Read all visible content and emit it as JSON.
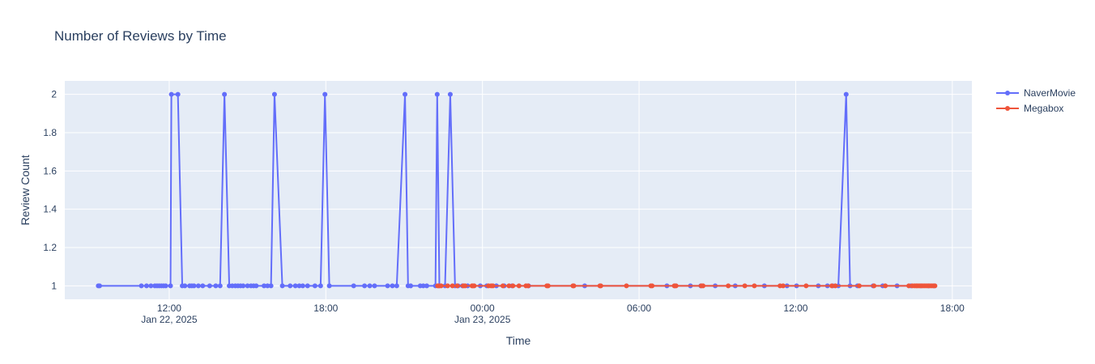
{
  "chart_data": {
    "type": "line",
    "title": "Number of Reviews by Time",
    "xlabel": "Time",
    "ylabel": "Review Count",
    "xlim": [
      "2025-01-22 08:00",
      "2025-01-23 18:45"
    ],
    "ylim": [
      0.93,
      2.07
    ],
    "yticks": [
      1,
      1.2,
      1.4,
      1.6,
      1.8,
      2
    ],
    "ytick_labels": [
      "1",
      "1.2",
      "1.4",
      "1.6",
      "1.8",
      "2"
    ],
    "xticks": [
      {
        "t": "2025-01-22 12:00",
        "label": "12:00",
        "sublabel": "Jan 22, 2025"
      },
      {
        "t": "2025-01-22 18:00",
        "label": "18:00",
        "sublabel": ""
      },
      {
        "t": "2025-01-23 00:00",
        "label": "00:00",
        "sublabel": "Jan 23, 2025"
      },
      {
        "t": "2025-01-23 06:00",
        "label": "06:00",
        "sublabel": ""
      },
      {
        "t": "2025-01-23 12:00",
        "label": "12:00",
        "sublabel": ""
      },
      {
        "t": "2025-01-23 18:00",
        "label": "18:00",
        "sublabel": ""
      }
    ],
    "grid": true,
    "legend_position": "top-right",
    "colors": {
      "plot_bg": "#e5ecf6",
      "grid": "#ffffff",
      "text": "#2a3f5f"
    },
    "series": [
      {
        "name": "NaverMovie",
        "color": "#636efa",
        "points": [
          [
            "2025-01-22 09:17",
            1
          ],
          [
            "2025-01-22 09:20",
            1
          ],
          [
            "2025-01-22 10:56",
            1
          ],
          [
            "2025-01-22 11:08",
            1
          ],
          [
            "2025-01-22 11:18",
            1
          ],
          [
            "2025-01-22 11:27",
            1
          ],
          [
            "2025-01-22 11:32",
            1
          ],
          [
            "2025-01-22 11:37",
            1
          ],
          [
            "2025-01-22 11:42",
            1
          ],
          [
            "2025-01-22 11:47",
            1
          ],
          [
            "2025-01-22 11:52",
            1
          ],
          [
            "2025-01-22 12:03",
            1
          ],
          [
            "2025-01-22 12:05",
            2
          ],
          [
            "2025-01-22 12:20",
            2
          ],
          [
            "2025-01-22 12:30",
            1
          ],
          [
            "2025-01-22 12:36",
            1
          ],
          [
            "2025-01-22 12:47",
            1
          ],
          [
            "2025-01-22 12:52",
            1
          ],
          [
            "2025-01-22 12:57",
            1
          ],
          [
            "2025-01-22 13:07",
            1
          ],
          [
            "2025-01-22 13:17",
            1
          ],
          [
            "2025-01-22 13:33",
            1
          ],
          [
            "2025-01-22 13:47",
            1
          ],
          [
            "2025-01-22 13:57",
            1
          ],
          [
            "2025-01-22 14:07",
            2
          ],
          [
            "2025-01-22 14:18",
            1
          ],
          [
            "2025-01-22 14:25",
            1
          ],
          [
            "2025-01-22 14:32",
            1
          ],
          [
            "2025-01-22 14:38",
            1
          ],
          [
            "2025-01-22 14:44",
            1
          ],
          [
            "2025-01-22 14:50",
            1
          ],
          [
            "2025-01-22 15:00",
            1
          ],
          [
            "2025-01-22 15:08",
            1
          ],
          [
            "2025-01-22 15:14",
            1
          ],
          [
            "2025-01-22 15:20",
            1
          ],
          [
            "2025-01-22 15:38",
            1
          ],
          [
            "2025-01-22 15:46",
            1
          ],
          [
            "2025-01-22 15:54",
            1
          ],
          [
            "2025-01-22 16:02",
            2
          ],
          [
            "2025-01-22 16:20",
            1
          ],
          [
            "2025-01-22 16:38",
            1
          ],
          [
            "2025-01-22 16:50",
            1
          ],
          [
            "2025-01-22 16:59",
            1
          ],
          [
            "2025-01-22 17:07",
            1
          ],
          [
            "2025-01-22 17:18",
            1
          ],
          [
            "2025-01-22 17:35",
            1
          ],
          [
            "2025-01-22 17:48",
            1
          ],
          [
            "2025-01-22 17:58",
            2
          ],
          [
            "2025-01-22 18:08",
            1
          ],
          [
            "2025-01-22 19:04",
            1
          ],
          [
            "2025-01-22 19:29",
            1
          ],
          [
            "2025-01-22 19:41",
            1
          ],
          [
            "2025-01-22 19:52",
            1
          ],
          [
            "2025-01-22 20:22",
            1
          ],
          [
            "2025-01-22 20:33",
            1
          ],
          [
            "2025-01-22 20:43",
            1
          ],
          [
            "2025-01-22 21:02",
            2
          ],
          [
            "2025-01-22 21:09",
            1
          ],
          [
            "2025-01-22 21:15",
            1
          ],
          [
            "2025-01-22 21:37",
            1
          ],
          [
            "2025-01-22 21:44",
            1
          ],
          [
            "2025-01-22 21:52",
            1
          ],
          [
            "2025-01-22 22:12",
            1
          ],
          [
            "2025-01-22 22:16",
            2
          ],
          [
            "2025-01-22 22:21",
            1
          ],
          [
            "2025-01-22 22:34",
            1
          ],
          [
            "2025-01-22 22:46",
            2
          ],
          [
            "2025-01-22 22:57",
            1
          ],
          [
            "2025-01-22 23:04",
            1
          ],
          [
            "2025-01-22 23:14",
            1
          ],
          [
            "2025-01-22 23:26",
            1
          ],
          [
            "2025-01-22 23:55",
            1
          ],
          [
            "2025-01-23 00:10",
            1
          ],
          [
            "2025-01-23 00:32",
            1
          ],
          [
            "2025-01-23 00:50",
            1
          ],
          [
            "2025-01-23 01:08",
            1
          ],
          [
            "2025-01-23 01:46",
            1
          ],
          [
            "2025-01-23 03:55",
            1
          ],
          [
            "2025-01-23 07:04",
            1
          ],
          [
            "2025-01-23 07:22",
            1
          ],
          [
            "2025-01-23 07:58",
            1
          ],
          [
            "2025-01-23 08:22",
            1
          ],
          [
            "2025-01-23 08:55",
            1
          ],
          [
            "2025-01-23 09:41",
            1
          ],
          [
            "2025-01-23 10:48",
            1
          ],
          [
            "2025-01-23 11:40",
            1
          ],
          [
            "2025-01-23 12:02",
            1
          ],
          [
            "2025-01-23 12:52",
            1
          ],
          [
            "2025-01-23 13:13",
            1
          ],
          [
            "2025-01-23 13:25",
            1
          ],
          [
            "2025-01-23 13:38",
            1
          ],
          [
            "2025-01-23 13:56",
            2
          ],
          [
            "2025-01-23 14:05",
            1
          ],
          [
            "2025-01-23 14:22",
            1
          ],
          [
            "2025-01-23 14:58",
            1
          ],
          [
            "2025-01-23 15:20",
            1
          ],
          [
            "2025-01-23 15:53",
            1
          ],
          [
            "2025-01-23 16:25",
            1
          ],
          [
            "2025-01-23 16:48",
            1
          ],
          [
            "2025-01-23 17:05",
            1
          ],
          [
            "2025-01-23 17:18",
            1
          ]
        ]
      },
      {
        "name": "Megabox",
        "color": "#ef553b",
        "points": [
          [
            "2025-01-22 22:17",
            1
          ],
          [
            "2025-01-22 22:20",
            1
          ],
          [
            "2025-01-22 22:25",
            1
          ],
          [
            "2025-01-22 22:40",
            1
          ],
          [
            "2025-01-22 22:51",
            1
          ],
          [
            "2025-01-22 23:02",
            1
          ],
          [
            "2025-01-22 23:16",
            1
          ],
          [
            "2025-01-22 23:20",
            1
          ],
          [
            "2025-01-22 23:36",
            1
          ],
          [
            "2025-01-22 23:38",
            1
          ],
          [
            "2025-01-22 23:41",
            1
          ],
          [
            "2025-01-23 00:14",
            1
          ],
          [
            "2025-01-23 00:20",
            1
          ],
          [
            "2025-01-23 00:24",
            1
          ],
          [
            "2025-01-23 00:47",
            1
          ],
          [
            "2025-01-23 01:01",
            1
          ],
          [
            "2025-01-23 01:10",
            1
          ],
          [
            "2025-01-23 01:24",
            1
          ],
          [
            "2025-01-23 01:40",
            1
          ],
          [
            "2025-01-23 01:45",
            1
          ],
          [
            "2025-01-23 02:28",
            1
          ],
          [
            "2025-01-23 02:31",
            1
          ],
          [
            "2025-01-23 03:28",
            1
          ],
          [
            "2025-01-23 03:30",
            1
          ],
          [
            "2025-01-23 04:30",
            1
          ],
          [
            "2025-01-23 04:32",
            1
          ],
          [
            "2025-01-23 05:31",
            1
          ],
          [
            "2025-01-23 06:27",
            1
          ],
          [
            "2025-01-23 06:30",
            1
          ],
          [
            "2025-01-23 07:21",
            1
          ],
          [
            "2025-01-23 07:25",
            1
          ],
          [
            "2025-01-23 08:23",
            1
          ],
          [
            "2025-01-23 08:27",
            1
          ],
          [
            "2025-01-23 09:25",
            1
          ],
          [
            "2025-01-23 10:03",
            1
          ],
          [
            "2025-01-23 10:25",
            1
          ],
          [
            "2025-01-23 11:24",
            1
          ],
          [
            "2025-01-23 11:31",
            1
          ],
          [
            "2025-01-23 12:24",
            1
          ],
          [
            "2025-01-23 13:23",
            1
          ],
          [
            "2025-01-23 13:31",
            1
          ],
          [
            "2025-01-23 14:26",
            1
          ],
          [
            "2025-01-23 15:00",
            1
          ],
          [
            "2025-01-23 15:26",
            1
          ],
          [
            "2025-01-23 16:20",
            1
          ],
          [
            "2025-01-23 16:28",
            1
          ],
          [
            "2025-01-23 16:33",
            1
          ],
          [
            "2025-01-23 16:37",
            1
          ],
          [
            "2025-01-23 16:40",
            1
          ],
          [
            "2025-01-23 16:44",
            1
          ],
          [
            "2025-01-23 16:48",
            1
          ],
          [
            "2025-01-23 16:52",
            1
          ],
          [
            "2025-01-23 16:56",
            1
          ],
          [
            "2025-01-23 17:00",
            1
          ],
          [
            "2025-01-23 17:04",
            1
          ],
          [
            "2025-01-23 17:08",
            1
          ],
          [
            "2025-01-23 17:12",
            1
          ],
          [
            "2025-01-23 17:16",
            1
          ],
          [
            "2025-01-23 17:20",
            1
          ]
        ]
      }
    ]
  }
}
